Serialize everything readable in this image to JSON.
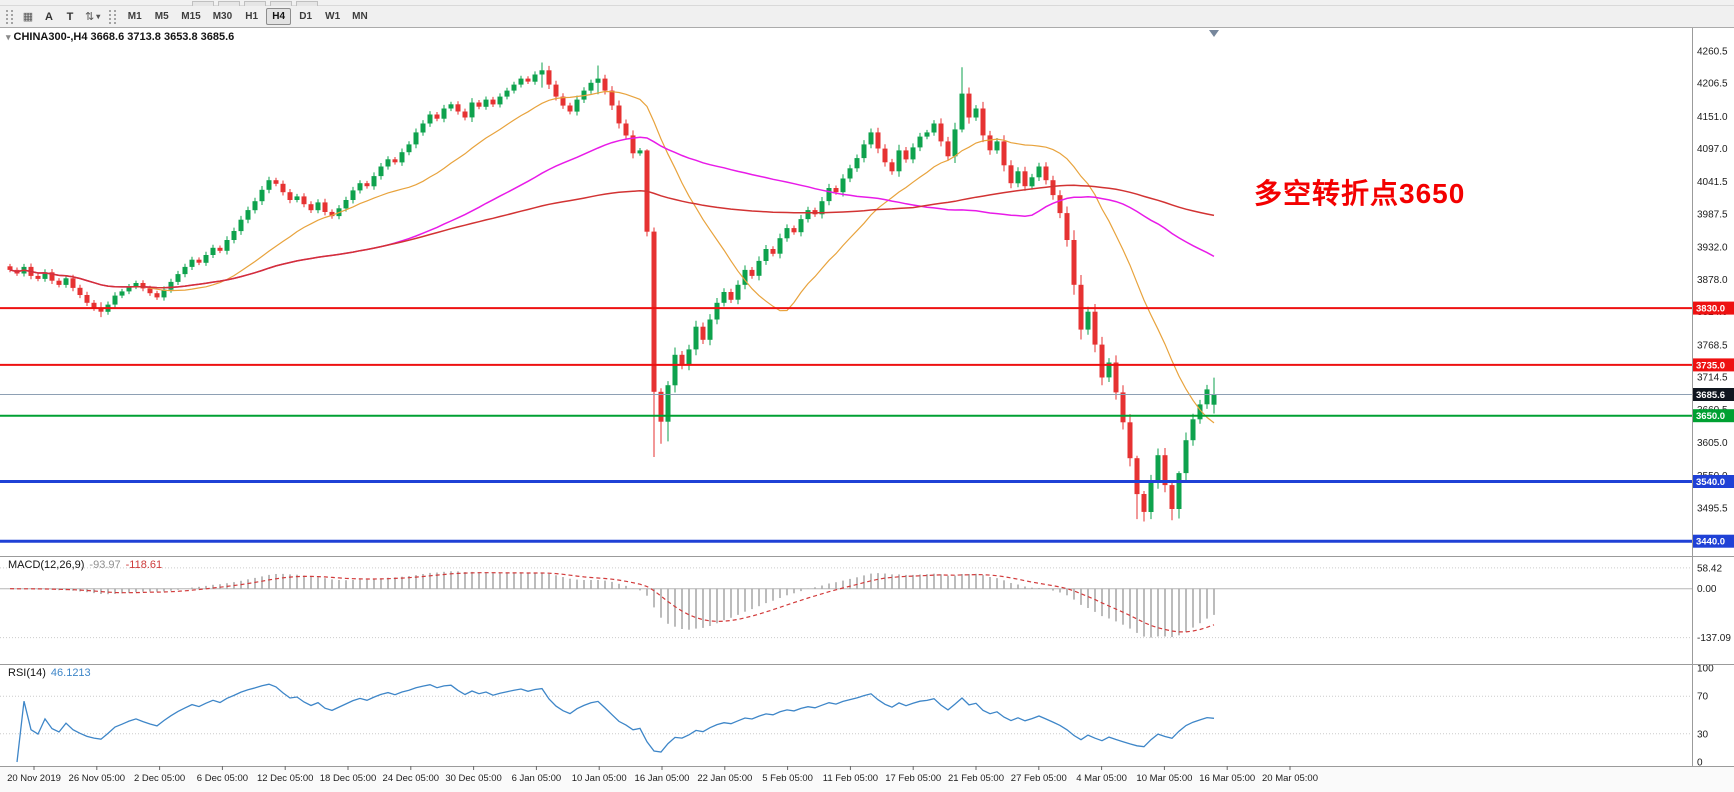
{
  "toolbar": {
    "tools": [
      {
        "label": "A"
      },
      {
        "label": "T"
      }
    ],
    "timeframes": [
      "M1",
      "M5",
      "M15",
      "M30",
      "H1",
      "H4",
      "D1",
      "W1",
      "MN"
    ],
    "active_timeframe": "H4"
  },
  "chart": {
    "symbol_header": "CHINA300-,H4  3668.6 3713.8 3653.8 3685.6",
    "annotation_text": "多空转折点3650",
    "current_price": 3685.6,
    "current_price_label": "3685.6",
    "y_ticks": [
      "4260.5",
      "4206.5",
      "4151.0",
      "4097.0",
      "4041.5",
      "3987.5",
      "3932.0",
      "3878.0",
      "3824.0",
      "3768.5",
      "3714.5",
      "3660.5",
      "3605.0",
      "3550.0",
      "3495.5",
      "3440.0"
    ],
    "hlines": [
      {
        "price": 3830.0,
        "label": "3830.0",
        "color": "#EE1111",
        "width": 2
      },
      {
        "price": 3735.0,
        "label": "3735.0",
        "color": "#EE1111",
        "width": 2
      },
      {
        "price": 3650.0,
        "label": "3650.0",
        "color": "#00A032",
        "width": 2
      },
      {
        "price": 3540.0,
        "label": "3540.0",
        "color": "#1F41D6",
        "width": 3
      },
      {
        "price": 3440.0,
        "label": "3440.0",
        "color": "#1F41D6",
        "width": 3
      }
    ]
  },
  "chart_data": {
    "type": "candlestick",
    "symbol": "CHINA300-",
    "timeframe": "H4",
    "ohlc_last": {
      "open": 3668.6,
      "high": 3713.8,
      "low": 3653.8,
      "close": 3685.6
    },
    "price_range": [
      3422,
      4282
    ],
    "closes": [
      3894,
      3888,
      3899,
      3884,
      3879,
      3890,
      3876,
      3869,
      3880,
      3864,
      3852,
      3839,
      3830,
      3824,
      3836,
      3851,
      3858,
      3866,
      3872,
      3863,
      3855,
      3848,
      3861,
      3874,
      3887,
      3899,
      3911,
      3906,
      3919,
      3931,
      3926,
      3944,
      3959,
      3978,
      3994,
      4009,
      4028,
      4044,
      4038,
      4024,
      4011,
      4017,
      4004,
      3994,
      4007,
      3991,
      3984,
      3997,
      4011,
      4027,
      4039,
      4034,
      4051,
      4067,
      4079,
      4074,
      4091,
      4104,
      4124,
      4139,
      4154,
      4147,
      4164,
      4171,
      4159,
      4149,
      4174,
      4167,
      4179,
      4171,
      4184,
      4194,
      4204,
      4214,
      4209,
      4221,
      4228,
      4204,
      4184,
      4169,
      4159,
      4179,
      4194,
      4207,
      4214,
      4194,
      4169,
      4139,
      4119,
      4089,
      4094,
      3958,
      3690,
      3640,
      3701,
      3752,
      3734,
      3761,
      3799,
      3777,
      3811,
      3839,
      3857,
      3844,
      3869,
      3894,
      3884,
      3909,
      3929,
      3921,
      3947,
      3964,
      3957,
      3979,
      3994,
      3987,
      4009,
      4031,
      4024,
      4047,
      4064,
      4081,
      4104,
      4124,
      4097,
      4074,
      4059,
      4094,
      4079,
      4099,
      4117,
      4124,
      4139,
      4109,
      4084,
      4129,
      4189,
      4149,
      4164,
      4119,
      4094,
      4109,
      4069,
      4039,
      4059,
      4034,
      4049,
      4067,
      4044,
      4019,
      3989,
      3944,
      3869,
      3794,
      3824,
      3769,
      3714,
      3739,
      3689,
      3639,
      3579,
      3519,
      3489,
      3539,
      3584,
      3534,
      3494,
      3554,
      3609,
      3644,
      3669,
      3694,
      3685.6
    ],
    "wick_overrides": {
      "13": [
        3840,
        3815
      ],
      "76": [
        4241,
        4199
      ],
      "84": [
        4236,
        4188
      ],
      "91": [
        4096,
        3950
      ],
      "92": [
        3965,
        3581
      ],
      "93": [
        3696,
        3603
      ],
      "94": [
        3708,
        3607
      ],
      "136": [
        4233,
        4124
      ],
      "161": [
        3583,
        3477
      ],
      "162": [
        3524,
        3473
      ],
      "166": [
        3538,
        3475
      ],
      "167": [
        3557,
        3478
      ],
      "172": [
        3713.8,
        3653.8
      ]
    },
    "ma_lines": [
      {
        "period": 20,
        "color": "#E8A33D",
        "width": 1.2
      },
      {
        "period": 55,
        "color": "#E81BE8",
        "width": 1.5
      },
      {
        "period": 130,
        "color": "#D23333",
        "width": 1.5
      }
    ],
    "x_labels": [
      "20 Nov 2019",
      "26 Nov 05:00",
      "2 Dec 05:00",
      "6 Dec 05:00",
      "12 Dec 05:00",
      "18 Dec 05:00",
      "24 Dec 05:00",
      "30 Dec 05:00",
      "6 Jan 05:00",
      "10 Jan 05:00",
      "16 Jan 05:00",
      "22 Jan 05:00",
      "5 Feb 05:00",
      "11 Feb 05:00",
      "17 Feb 05:00",
      "21 Feb 05:00",
      "27 Feb 05:00",
      "4 Mar 05:00",
      "10 Mar 05:00",
      "16 Mar 05:00",
      "20 Mar 05:00"
    ]
  },
  "macd": {
    "label": "MACD(12,26,9)",
    "value_main": "-93.97",
    "value_signal": "-118.61",
    "params": [
      12,
      26,
      9
    ],
    "y_ticks": [
      "58.42",
      "0.00",
      "-137.09"
    ],
    "tick_values": [
      58.42,
      0,
      -137.09
    ]
  },
  "rsi": {
    "label": "RSI(14)",
    "value": "46.1213",
    "period": 14,
    "y_ticks": [
      "100",
      "70",
      "30",
      "0"
    ],
    "tick_values": [
      100,
      70,
      30,
      0
    ],
    "levels": [
      70,
      30
    ]
  },
  "colors": {
    "up": "#0EA24D",
    "down": "#E63232",
    "macd_hist": "#A0A0A0",
    "macd_signal": "#D23B3B",
    "rsi_line": "#3E86C8",
    "price_tag_bg": "#10161F",
    "current_price_line": "#8EA0B4",
    "annotation": "#F30000"
  }
}
